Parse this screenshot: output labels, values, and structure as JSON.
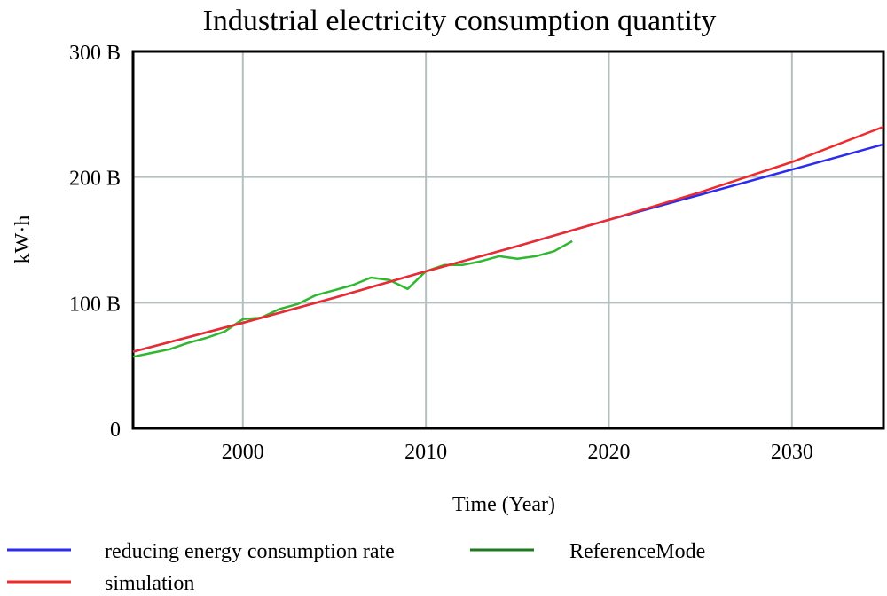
{
  "chart_data": {
    "type": "line",
    "title": "Industrial electricity consumption quantity",
    "xlabel": "Time (Year)",
    "ylabel": "kW·h",
    "xlim": [
      1994,
      2035
    ],
    "ylim": [
      0,
      300
    ],
    "x_ticks": [
      2000,
      2010,
      2020,
      2030
    ],
    "y_ticks": [
      0,
      100,
      200,
      300
    ],
    "y_tick_labels": [
      "0",
      "100 B",
      "200 B",
      "300 B"
    ],
    "grid": true,
    "legend_position": "bottom",
    "series": [
      {
        "name": "reducing energy consumption rate",
        "color": "#2a2af0",
        "points": [
          [
            1994,
            61
          ],
          [
            2000,
            84
          ],
          [
            2005,
            104
          ],
          [
            2010,
            125
          ],
          [
            2015,
            145
          ],
          [
            2020,
            166
          ],
          [
            2025,
            186
          ],
          [
            2030,
            206
          ],
          [
            2035,
            226
          ]
        ]
      },
      {
        "name": "simulation",
        "color": "#f02a2a",
        "points": [
          [
            1994,
            61
          ],
          [
            2000,
            84
          ],
          [
            2005,
            104
          ],
          [
            2010,
            125
          ],
          [
            2015,
            145
          ],
          [
            2020,
            166
          ],
          [
            2025,
            188
          ],
          [
            2030,
            212
          ],
          [
            2035,
            240
          ]
        ]
      },
      {
        "name": "ReferenceMode",
        "color": "#2fb82f",
        "legend_color": "#1e7a1e",
        "points": [
          [
            1994,
            57
          ],
          [
            1995,
            60
          ],
          [
            1996,
            63
          ],
          [
            1997,
            68
          ],
          [
            1998,
            72
          ],
          [
            1999,
            77
          ],
          [
            2000,
            87
          ],
          [
            2001,
            88
          ],
          [
            2002,
            95
          ],
          [
            2003,
            99
          ],
          [
            2004,
            106
          ],
          [
            2005,
            110
          ],
          [
            2006,
            114
          ],
          [
            2007,
            120
          ],
          [
            2008,
            118
          ],
          [
            2009,
            111
          ],
          [
            2010,
            125
          ],
          [
            2011,
            130
          ],
          [
            2012,
            130
          ],
          [
            2013,
            133
          ],
          [
            2014,
            137
          ],
          [
            2015,
            135
          ],
          [
            2016,
            137
          ],
          [
            2017,
            141
          ],
          [
            2018,
            149
          ]
        ]
      }
    ]
  }
}
